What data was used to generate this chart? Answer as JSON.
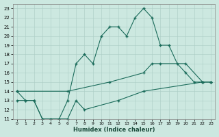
{
  "xlabel": "Humidex (Indice chaleur)",
  "bg_color": "#cce8e0",
  "grid_color": "#aaccC4",
  "line_color": "#1a6b5a",
  "xlim": [
    -0.5,
    23.5
  ],
  "ylim": [
    11,
    23.5
  ],
  "xticks": [
    0,
    1,
    2,
    3,
    4,
    5,
    6,
    7,
    8,
    9,
    10,
    11,
    12,
    13,
    14,
    15,
    16,
    17,
    18,
    19,
    20,
    21,
    22,
    23
  ],
  "yticks": [
    11,
    12,
    13,
    14,
    15,
    16,
    17,
    18,
    19,
    20,
    21,
    22,
    23
  ],
  "line1_x": [
    0,
    1,
    2,
    3,
    4,
    5,
    6,
    7,
    8,
    9,
    10,
    11,
    12,
    13,
    14,
    15,
    16,
    17,
    18,
    19,
    20,
    21,
    22,
    23
  ],
  "line1_y": [
    14,
    13,
    13,
    11,
    11,
    11,
    13,
    17,
    18,
    17,
    20,
    21,
    21,
    20,
    22,
    23,
    22,
    19,
    19,
    17,
    16,
    15,
    15,
    15
  ],
  "line2_x": [
    0,
    6,
    11,
    15,
    16,
    17,
    20,
    22,
    23
  ],
  "line2_y": [
    14,
    14,
    15,
    16,
    17,
    17,
    17,
    15,
    15
  ],
  "line3_x": [
    0,
    1,
    2,
    3,
    4,
    5,
    6,
    7,
    8,
    12,
    15,
    22,
    23
  ],
  "line3_y": [
    13,
    13,
    13,
    11,
    11,
    11,
    11,
    13,
    12,
    13,
    14,
    15,
    15
  ]
}
